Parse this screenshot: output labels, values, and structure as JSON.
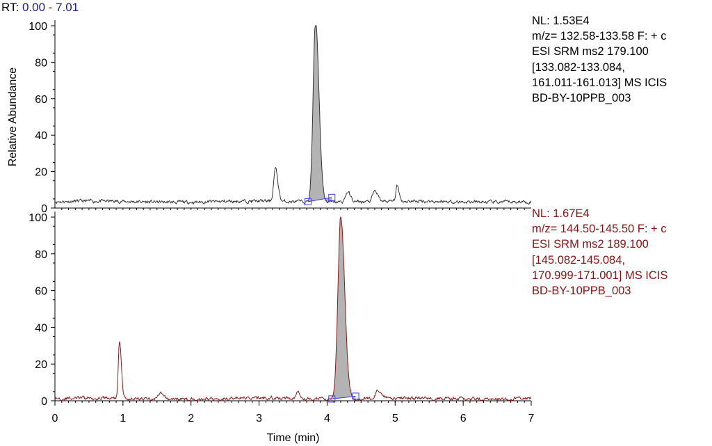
{
  "header": {
    "rt_label": "RT:",
    "rt_range": "0.00 - 7.01"
  },
  "colors": {
    "trace_top": "#333333",
    "trace_bottom": "#8b1a1a",
    "peak_fill": "#b3b3b3",
    "baseline_marker": "#3a3aff",
    "info_bottom_text": "#8b1212",
    "rt_range_text": "#1a1aa6"
  },
  "panels": [
    {
      "nl": "NL: 1.53E4",
      "lines": [
        "m/z= 132.58-133.58 F: + c",
        "ESI SRM ms2 179.100",
        "[133.082-133.084,",
        "161.011-161.013]  MS  ICIS",
        "BD-BY-10PPB_003"
      ]
    },
    {
      "nl": "NL: 1.67E4",
      "lines": [
        "m/z= 144.50-145.50 F: + c",
        "ESI SRM ms2 189.100",
        "[145.082-145.084,",
        "170.999-171.001]  MS  ICIS",
        "BD-BY-10PPB_003"
      ]
    }
  ],
  "chart_data": [
    {
      "type": "line",
      "ylabel": "Relative Abundance",
      "xlim": [
        0,
        7
      ],
      "ylim": [
        0,
        100
      ],
      "yticks": [
        0,
        20,
        40,
        60,
        80,
        100
      ],
      "baseline_level": 3.5,
      "peaks": [
        {
          "rt": 3.24,
          "height": 18,
          "width": 0.025
        },
        {
          "rt": 3.83,
          "height": 100,
          "width": 0.035,
          "shaded": true,
          "integration_start": 3.72,
          "integration_end": 4.07,
          "baseline_start": 3.5,
          "baseline_end": 5.8
        },
        {
          "rt": 4.3,
          "height": 5.5,
          "width": 0.03
        },
        {
          "rt": 4.7,
          "height": 5.8,
          "width": 0.03
        },
        {
          "rt": 5.03,
          "height": 8.2,
          "width": 0.02
        }
      ]
    },
    {
      "type": "line",
      "xlabel": "Time (min)",
      "xlim": [
        0,
        7
      ],
      "ylim": [
        0,
        100
      ],
      "xticks": [
        0,
        1,
        2,
        3,
        4,
        5,
        6,
        7
      ],
      "yticks": [
        0,
        20,
        40,
        60,
        80,
        100
      ],
      "baseline_level": 1.2,
      "peaks": [
        {
          "rt": 0.95,
          "height": 31,
          "width": 0.018
        },
        {
          "rt": 1.55,
          "height": 2.8,
          "width": 0.03
        },
        {
          "rt": 3.57,
          "height": 4.5,
          "width": 0.025
        },
        {
          "rt": 4.2,
          "height": 100,
          "width": 0.04,
          "shaded": true,
          "integration_start": 4.07,
          "integration_end": 4.42,
          "baseline_start": 1.0,
          "baseline_end": 2.5
        },
        {
          "rt": 4.74,
          "height": 4.2,
          "width": 0.03
        }
      ]
    }
  ]
}
